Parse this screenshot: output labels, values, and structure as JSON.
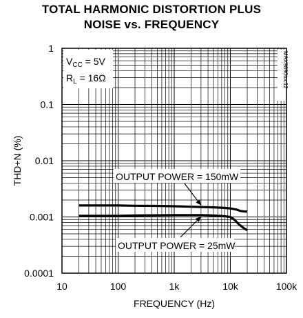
{
  "chart_data": {
    "type": "line",
    "title_line1": "TOTAL HARMONIC DISTORTION PLUS",
    "title_line2": "NOISE vs. FREQUENCY",
    "xlabel": "FREQUENCY (Hz)",
    "ylabel": "THD+N (%)",
    "x_scale": "log",
    "y_scale": "log",
    "xlim": [
      10,
      100000
    ],
    "ylim": [
      0.0001,
      1
    ],
    "x_ticks": [
      "10",
      "100",
      "1k",
      "10k",
      "100k"
    ],
    "y_ticks": [
      "1",
      "0.1",
      "0.01",
      "0.001",
      "0.0001"
    ],
    "grid": true,
    "conditions": {
      "vcc_prefix": "V",
      "vcc_sub": "CC",
      "vcc_value": " = 5V",
      "rl_prefix": "R",
      "rl_sub": "L",
      "rl_value": " = 16Ω"
    },
    "doc_id": "MAX9890toc12",
    "annotations": [
      {
        "text": "OUTPUT POWER = 150mW",
        "series": 0
      },
      {
        "text": "OUTPUT POWER = 25mW",
        "series": 1
      }
    ],
    "series": [
      {
        "x": [
          20,
          50,
          100,
          200,
          500,
          1000,
          2000,
          3000,
          5000,
          7000,
          10000,
          13000,
          15000,
          18000,
          20000
        ],
        "y": [
          0.0016,
          0.0016,
          0.0016,
          0.00158,
          0.00157,
          0.00155,
          0.00152,
          0.0015,
          0.00148,
          0.00146,
          0.00142,
          0.00135,
          0.00128,
          0.00125,
          0.00125
        ]
      },
      {
        "x": [
          20,
          50,
          100,
          200,
          500,
          1000,
          2000,
          3000,
          5000,
          7000,
          10000,
          12000,
          14000,
          17000,
          20000
        ],
        "y": [
          0.00105,
          0.00105,
          0.00105,
          0.00106,
          0.00107,
          0.00108,
          0.00108,
          0.00108,
          0.00106,
          0.00104,
          0.001,
          0.00088,
          0.00075,
          0.00064,
          0.00058
        ]
      }
    ]
  }
}
